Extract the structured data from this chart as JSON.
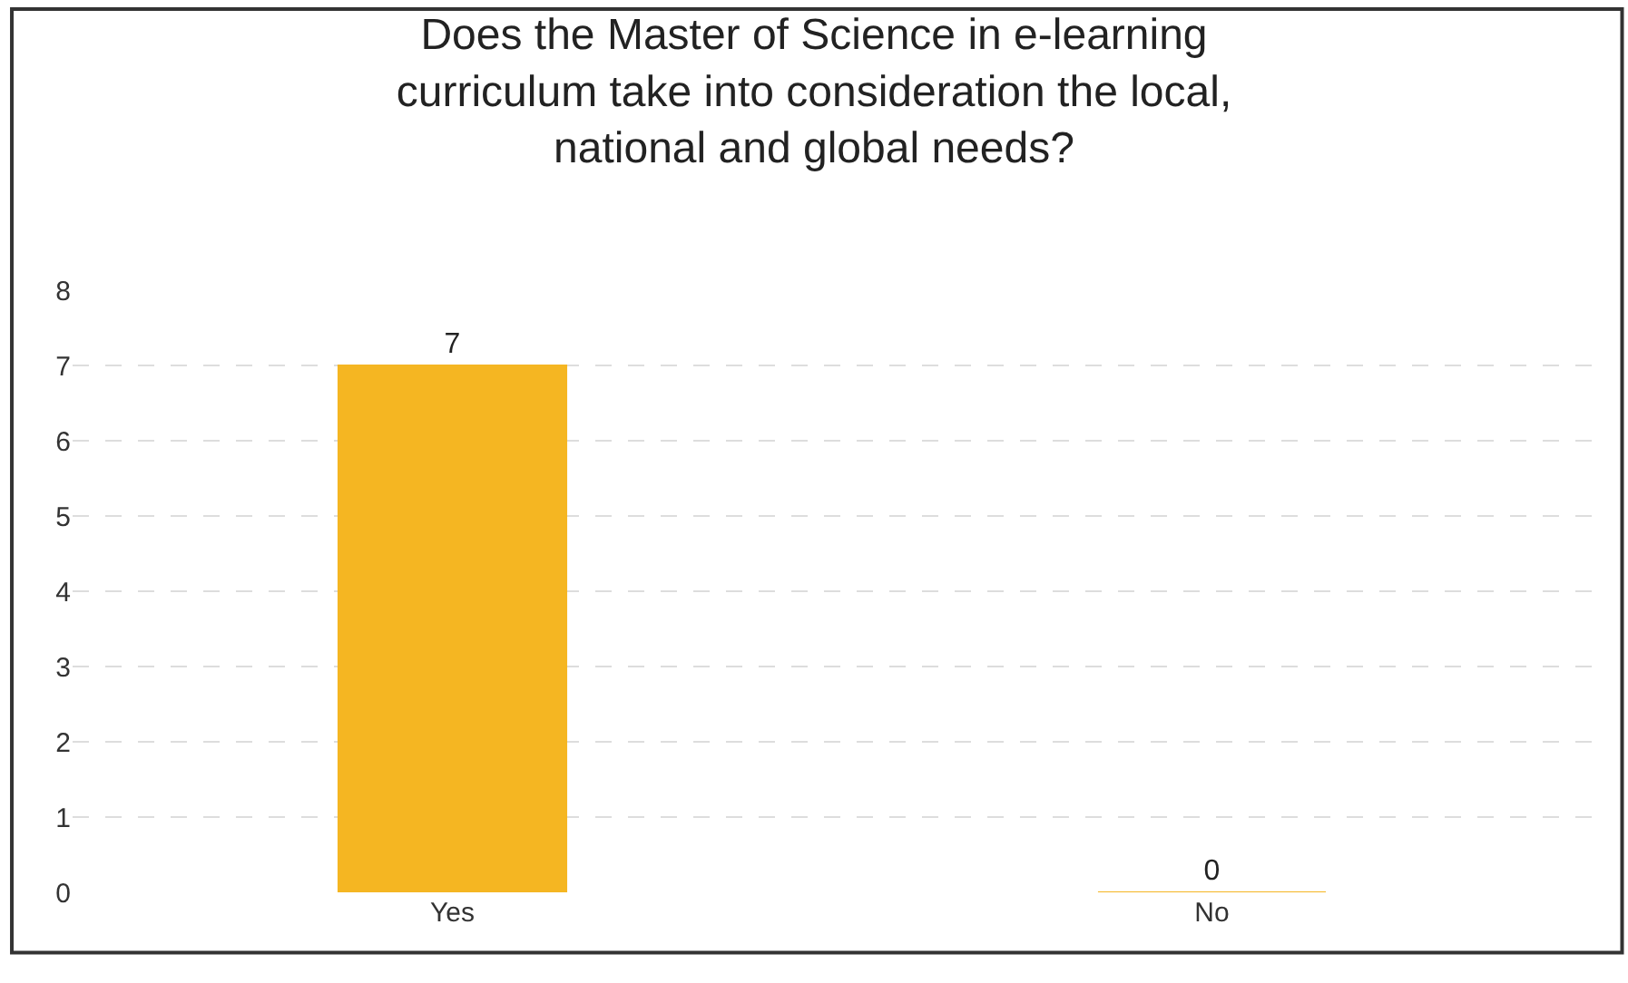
{
  "chart_data": {
    "type": "bar",
    "title": "Does the Master of Science in e-learning curriculum take into consideration the local, national and global needs?",
    "categories": [
      "Yes",
      "No"
    ],
    "values": [
      7,
      0
    ],
    "color": "#f5b622",
    "ylim": [
      0,
      8
    ],
    "yticks": [
      0,
      1,
      2,
      3,
      4,
      5,
      6,
      7,
      8
    ],
    "grid": "y",
    "data_labels": true,
    "legend": false
  }
}
